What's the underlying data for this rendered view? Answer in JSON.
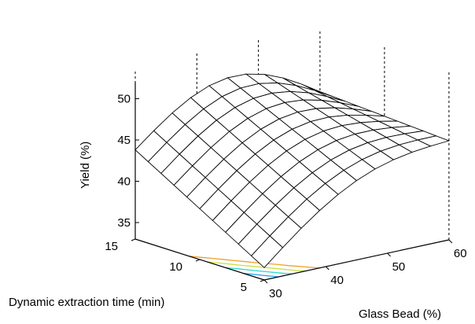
{
  "chart_data": {
    "type": "surface",
    "title": "",
    "xlabel": "Glass Bead (%)",
    "ylabel": "Dynamic extraction time (min)",
    "zlabel": "Yield (%)",
    "x_ticks": [
      "30",
      "40",
      "50",
      "60"
    ],
    "y_ticks": [
      "5",
      "10",
      "15"
    ],
    "z_ticks": [
      "35",
      "40",
      "45",
      "50"
    ],
    "xlim": [
      30,
      60
    ],
    "ylim": [
      5,
      15
    ],
    "zlim": [
      33,
      53
    ],
    "grid": false,
    "surface_grid": {
      "x_steps": 10,
      "y_steps": 10
    },
    "contour_levels": [
      34.8,
      36.1,
      37.4,
      38.7,
      40.0
    ],
    "contour_colors": [
      "#1a1ad6",
      "#1ea0e6",
      "#2ed8c8",
      "#c8e040",
      "#f0a030"
    ],
    "surface_points": [
      {
        "x": 30,
        "y": 15,
        "z": 43.8
      },
      {
        "x": 60,
        "y": 15,
        "z": 46.0
      },
      {
        "x": 30,
        "y": 5,
        "z": 34.5
      },
      {
        "x": 60,
        "y": 5,
        "z": 45.0
      }
    ],
    "colors": {
      "mesh_fill": "#ffffff",
      "mesh_line": "#000000",
      "axis": "#000000",
      "box": "#000000"
    }
  },
  "labels": {
    "xlabel": "Glass Bead (%)",
    "ylabel": "Dynamic extraction time (min)",
    "zlabel": "Yield (%)"
  }
}
